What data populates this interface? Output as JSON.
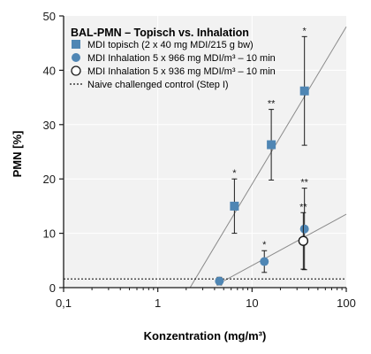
{
  "chart_data": {
    "type": "scatter",
    "title": "BAL-PMN – Topisch vs. Inhalation",
    "xlabel": "Konzentration (mg/m³)",
    "ylabel": "PMN [%]",
    "x_scale": "log",
    "xlim": [
      0.1,
      100
    ],
    "ylim": [
      0,
      50
    ],
    "x_ticks": [
      0.1,
      1,
      10,
      100
    ],
    "x_tick_labels": [
      "0,1",
      "1",
      "10",
      "100"
    ],
    "y_ticks": [
      0,
      10,
      20,
      30,
      40,
      50
    ],
    "y_tick_labels": [
      "0",
      "10",
      "20",
      "30",
      "40",
      "50"
    ],
    "legend_position": "top-left",
    "background_color": "#f2f2f2",
    "series": [
      {
        "name": "MDI topisch (2 x 40 mg MDI/215 g bw)",
        "marker": "square",
        "color": "#4f86b4",
        "points": [
          {
            "x": 6.5,
            "y": 15.0,
            "err_low": 5.0,
            "err_high": 5.0,
            "sig": "*"
          },
          {
            "x": 16,
            "y": 26.3,
            "err_low": 6.5,
            "err_high": 6.5,
            "sig": "**"
          },
          {
            "x": 36,
            "y": 36.2,
            "err_low": 10.0,
            "err_high": 10.0,
            "sig": "*"
          }
        ]
      },
      {
        "name": "MDI Inhalation 5 x 966 mg MDI/m³ – 10 min",
        "marker": "circle",
        "color": "#4f86b4",
        "points": [
          {
            "x": 4.5,
            "y": 1.2,
            "err_low": 0.7,
            "err_high": 0.7,
            "sig": ""
          },
          {
            "x": 13.5,
            "y": 4.8,
            "err_low": 2.0,
            "err_high": 2.0,
            "sig": "*"
          },
          {
            "x": 36,
            "y": 10.8,
            "err_low": 7.5,
            "err_high": 7.5,
            "sig": "**"
          }
        ]
      },
      {
        "name": "MDI Inhalation 5 x 936 mg MDI/m³ – 10 min",
        "marker": "open-circle",
        "color": "#1a1a1a",
        "points": [
          {
            "x": 35,
            "y": 8.6,
            "err_low": 5.2,
            "err_high": 5.2,
            "sig": "**"
          }
        ]
      }
    ],
    "reference_line": {
      "name": "Naive challenged control (Step I)",
      "style": "dotted",
      "y": 1.6
    },
    "trend_lines": [
      {
        "series": "MDI topisch (2 x 40 mg MDI/215 g bw)",
        "from": [
          2.2,
          0
        ],
        "to": [
          100,
          48
        ]
      },
      {
        "series": "MDI Inhalation 5 x 966 mg MDI/m³ – 10 min",
        "from": [
          4.5,
          0.8
        ],
        "to": [
          100,
          13.5
        ]
      }
    ]
  }
}
